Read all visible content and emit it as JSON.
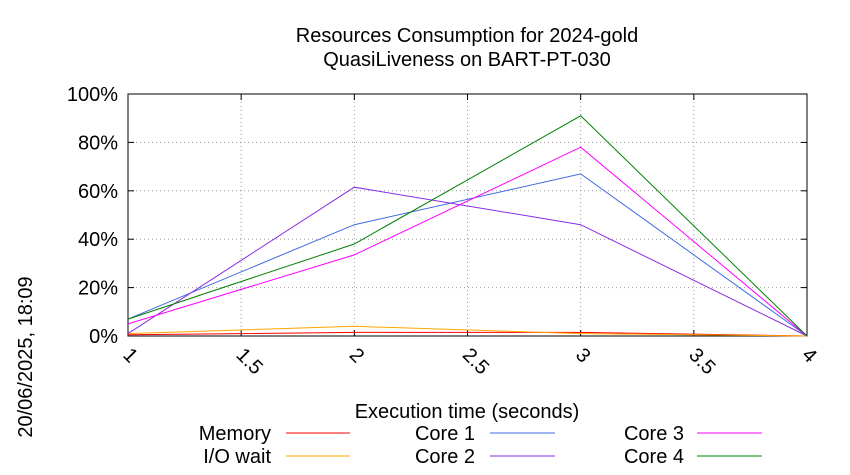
{
  "side_label": "20/06/2025, 18:09",
  "chart_data": {
    "type": "line",
    "title": "Resources Consumption for 2024-gold",
    "subtitle": "QuasiLiveness on BART-PT-030",
    "xlabel": "Execution time (seconds)",
    "ylabel": "",
    "xlim": [
      1,
      4
    ],
    "ylim": [
      0,
      100
    ],
    "x_ticks": [
      "1",
      "1.5",
      "2",
      "2.5",
      "3",
      "3.5",
      "4"
    ],
    "y_ticks": [
      "0%",
      "20%",
      "40%",
      "60%",
      "80%",
      "100%"
    ],
    "grid": true,
    "legend_position": "bottom",
    "x": [
      1,
      2,
      3,
      4
    ],
    "series": [
      {
        "name": "Memory",
        "color": "#ff0000",
        "values": [
          0.5,
          1.5,
          1.5,
          0
        ]
      },
      {
        "name": "I/O wait",
        "color": "#ffa500",
        "values": [
          1,
          4,
          1,
          0
        ]
      },
      {
        "name": "Core 1",
        "color": "#4169e1",
        "values": [
          7,
          46,
          67,
          0
        ]
      },
      {
        "name": "Core 2",
        "color": "#8a2be2",
        "values": [
          1,
          61.5,
          46,
          0
        ]
      },
      {
        "name": "Core 3",
        "color": "#ff00ff",
        "values": [
          5,
          33.5,
          78,
          0
        ]
      },
      {
        "name": "Core 4",
        "color": "#008000",
        "values": [
          7,
          38,
          91,
          0
        ]
      }
    ]
  }
}
